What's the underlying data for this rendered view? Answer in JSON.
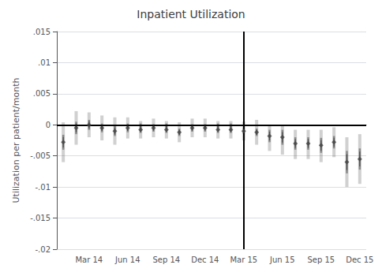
{
  "chart_data": {
    "type": "scatter",
    "title": "Inpatient Utilization",
    "ylabel": "Utilization per patient/month",
    "ylim": [
      -0.02,
      0.015
    ],
    "yticks": [
      {
        "value": -0.02,
        "label": "-.02"
      },
      {
        "value": -0.015,
        "label": "-.015"
      },
      {
        "value": -0.01,
        "label": "-.01"
      },
      {
        "value": -0.005,
        "label": "-.005"
      },
      0,
      {
        "value": 0.005,
        "label": ".005"
      },
      {
        "value": 0.01,
        "label": ".01"
      },
      {
        "value": 0.015,
        "label": ".015"
      }
    ],
    "grid": true,
    "color": "#444444",
    "marker": "diamond",
    "hline": 0,
    "vline": "Mar 15",
    "categories": [
      null,
      null,
      "Mar 14",
      null,
      null,
      "Jun 14",
      null,
      null,
      "Sep 14",
      null,
      null,
      "Dec 14",
      null,
      null,
      "Mar 15",
      null,
      null,
      "Jun 15",
      null,
      null,
      "Sep 15",
      null,
      null,
      "Dec 15"
    ],
    "values": [
      -0.0028,
      -0.0005,
      0.0,
      -0.0005,
      -0.001,
      -0.0005,
      -0.0008,
      -0.0005,
      -0.0008,
      -0.0012,
      -0.0005,
      -0.0005,
      -0.0008,
      -0.0008,
      -0.001,
      -0.0012,
      -0.0018,
      -0.002,
      -0.003,
      -0.003,
      -0.0033,
      -0.0028,
      -0.006,
      -0.0055
    ],
    "ci_lower": [
      -0.006,
      -0.0032,
      -0.002,
      -0.0025,
      -0.0032,
      -0.0022,
      -0.0022,
      -0.002,
      -0.0022,
      -0.0028,
      -0.002,
      -0.002,
      -0.0022,
      -0.0022,
      -0.0025,
      -0.0032,
      -0.0042,
      -0.0048,
      -0.0055,
      -0.0055,
      -0.006,
      -0.0052,
      -0.01,
      -0.0095
    ],
    "ci_upper": [
      0.0004,
      0.0022,
      0.002,
      0.0015,
      0.0012,
      0.0012,
      0.0006,
      0.001,
      0.0006,
      0.0004,
      0.001,
      0.001,
      0.0006,
      0.0006,
      0.0005,
      0.0008,
      -0.0002,
      -0.0002,
      -0.0008,
      -0.0008,
      -0.0008,
      -0.0004,
      -0.002,
      -0.0015
    ],
    "ci_mid_lower": [
      -0.004,
      -0.0015,
      -0.0008,
      -0.0012,
      -0.0018,
      -0.0012,
      -0.0013,
      -0.0011,
      -0.0013,
      -0.0018,
      -0.0011,
      -0.0011,
      -0.0013,
      -0.0013,
      -0.0015,
      -0.0018,
      -0.0028,
      -0.0032,
      -0.004,
      -0.004,
      -0.0045,
      -0.0038,
      -0.0078,
      -0.0072
    ],
    "ci_mid_upper": [
      -0.0016,
      0.0005,
      0.0008,
      0.0002,
      -0.0002,
      0.0002,
      0.0002,
      0.0001,
      0.0002,
      -0.0006,
      0.0001,
      0.0001,
      0.0002,
      0.0002,
      -0.0005,
      -0.0006,
      -0.0008,
      -0.0008,
      -0.002,
      -0.002,
      -0.0021,
      -0.0018,
      -0.0042,
      -0.0038
    ],
    "ci_inner_lower": [
      -0.00364,
      -0.0012,
      -0.00056,
      -0.00099,
      -0.00156,
      -0.00099,
      -0.00115,
      -0.00092,
      -0.00115,
      -0.00162,
      -0.00092,
      -0.00092,
      -0.00115,
      -0.00115,
      -0.00135,
      -0.00162,
      -0.0025,
      -0.00284,
      -0.0037,
      -0.0037,
      -0.00414,
      -0.0035,
      -0.00726,
      -0.00669
    ],
    "ci_inner_upper": [
      -0.00196,
      0.0002,
      0.00056,
      -1e-05,
      -0.00044,
      -1e-05,
      -0.0001,
      -8e-05,
      -0.0001,
      -0.00078,
      -8e-05,
      -8e-05,
      -0.0001,
      -0.0001,
      -0.00065,
      -0.00078,
      -0.0011,
      -0.00116,
      -0.0023,
      -0.0023,
      -0.00246,
      -0.0021,
      -0.00474,
      -0.00431
    ]
  }
}
